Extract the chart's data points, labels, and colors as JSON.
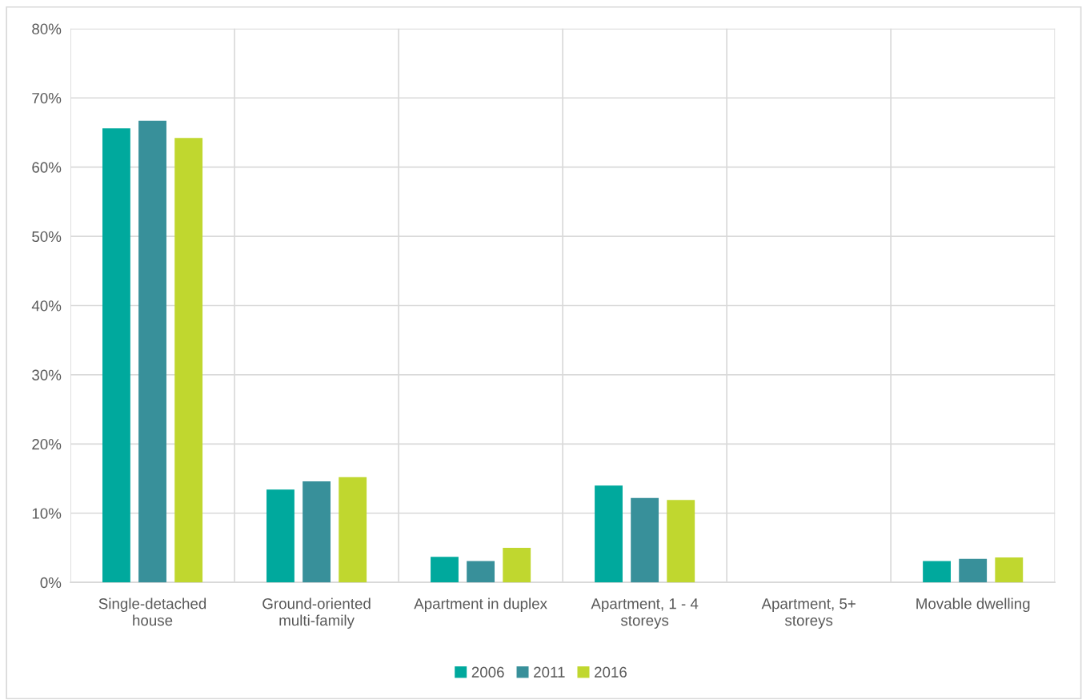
{
  "chart_data": {
    "type": "bar",
    "categories": [
      "Single-detached\nhouse",
      "Ground-oriented\nmulti-family",
      "Apartment in duplex",
      "Apartment, 1 - 4\nstoreys",
      "Apartment, 5+\nstoreys",
      "Movable dwelling"
    ],
    "series": [
      {
        "name": "2006",
        "color": "#00a99d",
        "values": [
          65.6,
          13.4,
          3.7,
          14.0,
          0,
          3.1
        ]
      },
      {
        "name": "2011",
        "color": "#38909a",
        "values": [
          66.7,
          14.6,
          3.1,
          12.2,
          0,
          3.4
        ]
      },
      {
        "name": "2016",
        "color": "#c0d72f",
        "values": [
          64.2,
          15.2,
          5.0,
          11.9,
          0,
          3.6
        ]
      }
    ],
    "ylim": [
      0,
      80
    ],
    "yticks": [
      {
        "value": 0,
        "label": "0%"
      },
      {
        "value": 10,
        "label": "10%"
      },
      {
        "value": 20,
        "label": "20%"
      },
      {
        "value": 30,
        "label": "30%"
      },
      {
        "value": 40,
        "label": "40%"
      },
      {
        "value": 50,
        "label": "50%"
      },
      {
        "value": 60,
        "label": "60%"
      },
      {
        "value": 70,
        "label": "70%"
      },
      {
        "value": 80,
        "label": "80%"
      }
    ],
    "grid": true,
    "legend": "bottom"
  }
}
